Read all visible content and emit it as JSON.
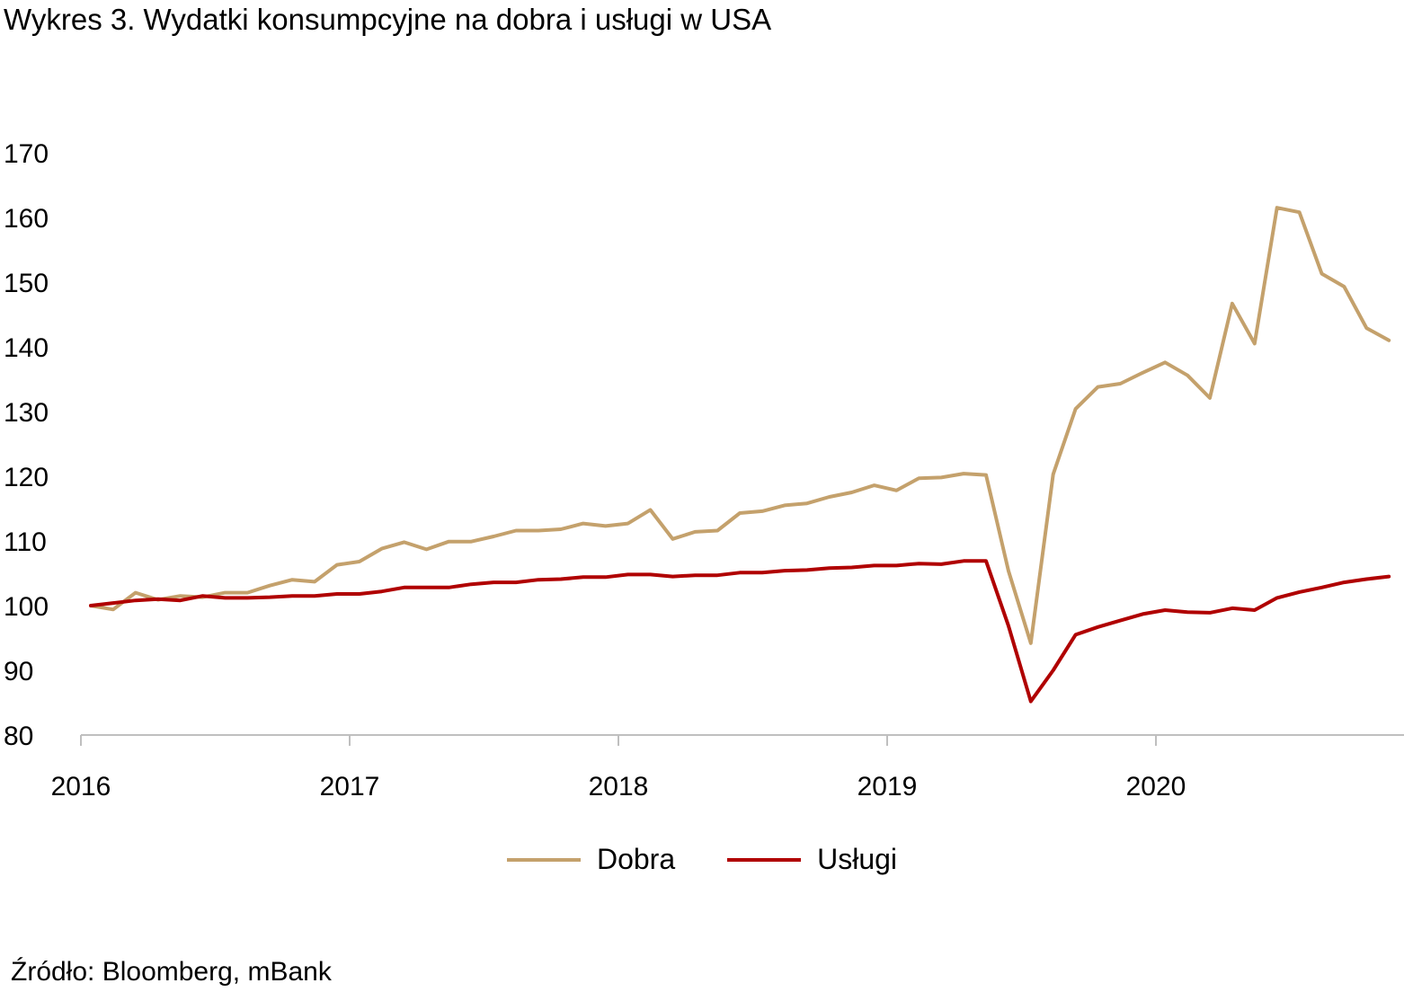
{
  "title": "Wykres 3. Wydatki konsumpcyjne na dobra i usługi w USA",
  "source": "Źródło: Bloomberg, mBank",
  "chart_data": {
    "type": "line",
    "title": "Wykres 3. Wydatki konsumpcyjne na dobra i usługi w USA",
    "ylim": [
      80,
      170
    ],
    "yticks": [
      "80",
      "90",
      "100",
      "110",
      "120",
      "130",
      "140",
      "150",
      "160",
      "170"
    ],
    "xticks": [
      "2016",
      "2017",
      "2018",
      "2019",
      "2020"
    ],
    "x_start": "2016-01",
    "x_freq": "monthly",
    "grid": false,
    "legend_position": "bottom",
    "series": [
      {
        "name": "Dobra",
        "color": "#C4A16C",
        "values": [
          100,
          99.4,
          102,
          100.9,
          101.5,
          101.3,
          102,
          102,
          103.1,
          104,
          103.7,
          106.3,
          106.8,
          108.8,
          109.8,
          108.7,
          109.9,
          109.9,
          110.7,
          111.6,
          111.6,
          111.8,
          112.7,
          112.3,
          112.7,
          114.8,
          110.3,
          111.4,
          111.6,
          114.3,
          114.6,
          115.5,
          115.8,
          116.8,
          117.5,
          118.6,
          117.8,
          119.7,
          119.8,
          120.4,
          120.2,
          105.4,
          94.2,
          120.3,
          130.4,
          133.8,
          134.3,
          136,
          137.6,
          135.6,
          132.1,
          146.7,
          140.5,
          161.5,
          160.8,
          151.3,
          149.3,
          142.9,
          141
        ]
      },
      {
        "name": "Usługi",
        "color": "#B00000",
        "values": [
          100,
          100.4,
          100.8,
          101,
          100.8,
          101.5,
          101.2,
          101.2,
          101.3,
          101.5,
          101.5,
          101.8,
          101.8,
          102.2,
          102.8,
          102.8,
          102.8,
          103.3,
          103.6,
          103.6,
          104,
          104.1,
          104.4,
          104.4,
          104.8,
          104.8,
          104.5,
          104.7,
          104.7,
          105.1,
          105.1,
          105.4,
          105.5,
          105.8,
          105.9,
          106.2,
          106.2,
          106.5,
          106.4,
          106.9,
          106.9,
          96.9,
          85.2,
          90,
          95.5,
          96.7,
          97.7,
          98.7,
          99.3,
          99,
          98.9,
          99.6,
          99.3,
          101.2,
          102.1,
          102.8,
          103.6,
          104.1,
          104.5
        ]
      }
    ]
  }
}
